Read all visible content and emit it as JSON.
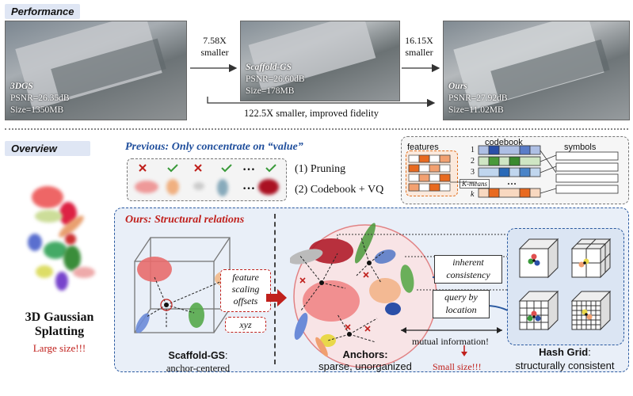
{
  "performance": {
    "tag": "Performance",
    "panels": [
      {
        "name": "3DGS",
        "psnr": "PSNR=26.35dB",
        "size": "Size=1350MB"
      },
      {
        "name": "Scaffold-GS",
        "psnr": "PSNR=26.60dB",
        "size": "Size=178MB"
      },
      {
        "name": "Ours",
        "psnr": "PSNR=27.92dB",
        "size": "Size=11.02MB"
      }
    ],
    "arrow1": {
      "line1": "7.58X",
      "line2": "smaller"
    },
    "arrow2": {
      "line1": "16.15X",
      "line2": "smaller"
    },
    "bottom_arrow": "122.5X smaller, improved fidelity"
  },
  "overview": {
    "tag": "Overview",
    "left_title_1": "3D Gaussian",
    "left_title_2": "Splatting",
    "left_warning": "Large size!!!"
  },
  "previous": {
    "title": "Previous: Only concentrate on “value”",
    "ellipsis": "…",
    "item1": "(1) Pruning",
    "item2": "(2) Codebook + VQ",
    "features_label": "features",
    "codebook_label": "codebook",
    "symbols_label": "symbols",
    "kmeans_label": "K-means",
    "rows": [
      "1",
      "2",
      "3",
      "k"
    ],
    "dots": "…"
  },
  "ours": {
    "title": "Ours: Structural relations",
    "attrs": [
      "feature",
      "scaling",
      "offsets"
    ],
    "xyz": "xyz",
    "scaffold_title": "Scaffold-GS",
    "scaffold_sub": "anchor-centered",
    "inherent_1": "inherent",
    "inherent_2": "consistency",
    "query_1": "query by",
    "query_2": "location",
    "anchors_title": "Anchors:",
    "anchors_sub": "sparse, unorganized",
    "mutual": "mutual information!",
    "small": "Small size!!!",
    "hash_title": "Hash Grid",
    "hash_sub": "structurally consistent"
  },
  "colors": {
    "blue_title": "#1f4e9c",
    "red": "#c0201c",
    "green_check": "#3a9a3a",
    "box_bg": "#e8eef8"
  }
}
